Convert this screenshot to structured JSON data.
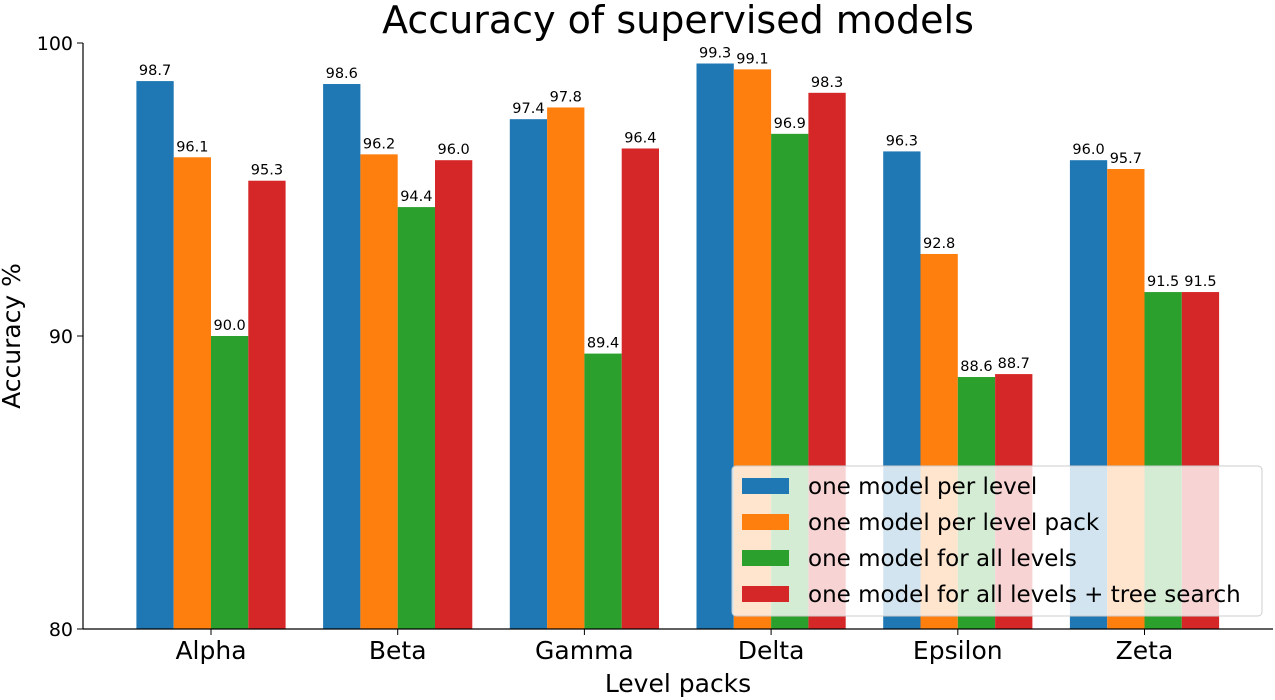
{
  "chart_data": {
    "type": "bar",
    "title": "Accuracy of supervised models",
    "xlabel": "Level packs",
    "ylabel": "Accuracy %",
    "ylim": [
      80,
      100
    ],
    "yticks": [
      "80",
      "90",
      "100"
    ],
    "yticks_values": [
      80,
      90,
      100
    ],
    "grid": false,
    "legend_position": "bottom-right",
    "categories": [
      "Alpha",
      "Beta",
      "Gamma",
      "Delta",
      "Epsilon",
      "Zeta"
    ],
    "series": [
      {
        "name": "one model per level",
        "color": "#1f77b4",
        "values": [
          98.7,
          98.6,
          97.4,
          99.3,
          96.3,
          96.0
        ],
        "labels": [
          "98.7",
          "98.6",
          "97.4",
          "99.3",
          "96.3",
          "96.0"
        ]
      },
      {
        "name": "one model per level pack",
        "color": "#ff7f0e",
        "values": [
          96.1,
          96.2,
          97.8,
          99.1,
          92.8,
          95.7
        ],
        "labels": [
          "96.1",
          "96.2",
          "97.8",
          "99.1",
          "92.8",
          "95.7"
        ]
      },
      {
        "name": "one model for all levels",
        "color": "#2ca02c",
        "values": [
          90.0,
          94.4,
          89.4,
          96.9,
          88.6,
          91.5
        ],
        "labels": [
          "90.0",
          "94.4",
          "89.4",
          "96.9",
          "88.6",
          "91.5"
        ]
      },
      {
        "name": "one model for all levels + tree search",
        "color": "#d62728",
        "values": [
          95.3,
          96.0,
          96.4,
          98.3,
          88.7,
          91.5
        ],
        "labels": [
          "95.3",
          "96.0",
          "96.4",
          "98.3",
          "88.7",
          "91.5"
        ]
      }
    ]
  }
}
